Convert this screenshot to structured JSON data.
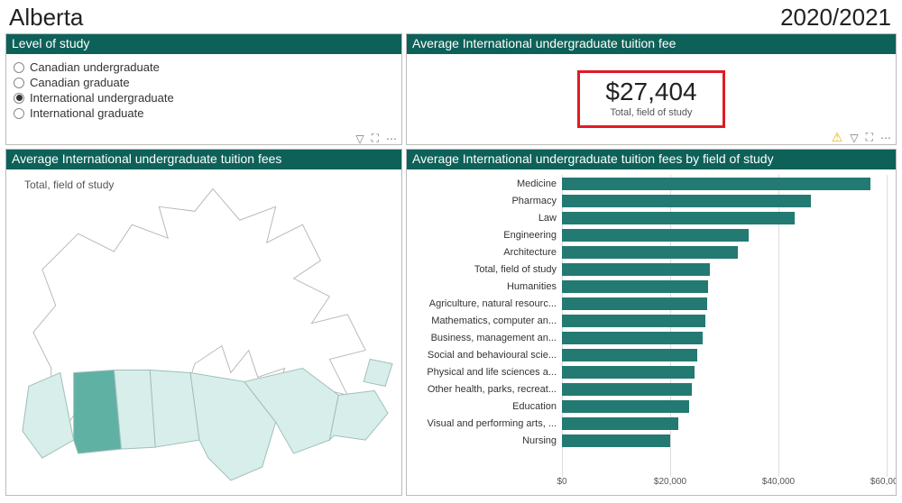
{
  "header": {
    "title": "Alberta",
    "year": "2020/2021"
  },
  "colors": {
    "panel_header_bg": "#0e6158",
    "panel_header_text": "#ffffff",
    "panel_border": "#bbbbbb",
    "page_bg": "#ffffff",
    "bar_color": "#237a72",
    "grid_color": "#dddddd",
    "kpi_border": "#e01b24",
    "map_land": "#d8eeea",
    "map_land_stroke": "#9fbfb9",
    "map_outline": "#b9b9b9",
    "map_selected": "#5fb1a4",
    "text_muted": "#555555"
  },
  "level_of_study": {
    "title": "Level of study",
    "options": [
      {
        "id": "can-undergrad",
        "label": "Canadian undergraduate",
        "selected": false
      },
      {
        "id": "can-grad",
        "label": "Canadian graduate",
        "selected": false
      },
      {
        "id": "intl-undergrad",
        "label": "International undergraduate",
        "selected": true
      },
      {
        "id": "intl-grad",
        "label": "International graduate",
        "selected": false
      }
    ],
    "tools": {
      "filter": "▽",
      "focus": "⛶",
      "more": "⋯"
    }
  },
  "kpi": {
    "title": "Average International undergraduate tuition fee",
    "value": "$27,404",
    "subtitle": "Total, field of study",
    "tools": {
      "warn": "⚠",
      "filter": "▽",
      "focus": "⛶",
      "more": "⋯"
    }
  },
  "map": {
    "title": "Average International undergraduate tuition fees",
    "label": "Total, field of study"
  },
  "barchart": {
    "title": "Average International undergraduate tuition fees by field of study",
    "type": "bar",
    "bar_color": "#237a72",
    "xlim": [
      0,
      60000
    ],
    "xticks": [
      0,
      20000,
      40000,
      60000
    ],
    "xtick_labels": [
      "$0",
      "$20,000",
      "$40,000",
      "$60,000"
    ],
    "label_fontsize": 11,
    "rows": [
      {
        "label": "Medicine",
        "value": 57000
      },
      {
        "label": "Pharmacy",
        "value": 46000
      },
      {
        "label": "Law",
        "value": 43000
      },
      {
        "label": "Engineering",
        "value": 34500
      },
      {
        "label": "Architecture",
        "value": 32500
      },
      {
        "label": "Total, field of study",
        "value": 27404
      },
      {
        "label": "Humanities",
        "value": 27000
      },
      {
        "label": "Agriculture, natural resourc...",
        "value": 26800
      },
      {
        "label": "Mathematics, computer an...",
        "value": 26500
      },
      {
        "label": "Business, management an...",
        "value": 26000
      },
      {
        "label": "Social and behavioural scie...",
        "value": 25000
      },
      {
        "label": "Physical and life sciences a...",
        "value": 24500
      },
      {
        "label": "Other health, parks, recreat...",
        "value": 24000
      },
      {
        "label": "Education",
        "value": 23500
      },
      {
        "label": "Visual and performing arts, ...",
        "value": 21500
      },
      {
        "label": "Nursing",
        "value": 20000
      }
    ]
  }
}
